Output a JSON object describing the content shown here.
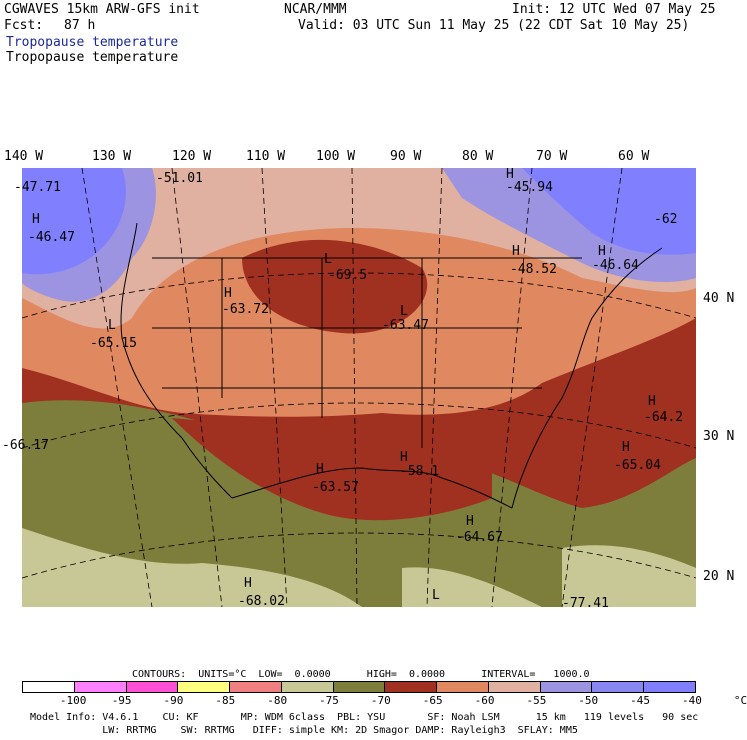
{
  "header": {
    "model_title": "CGWAVES 15km ARW-GFS init",
    "org": "NCAR/MMM",
    "init": "Init: 12 UTC Wed 07 May 25",
    "fcst_label": "Fcst:",
    "fcst_value": "87 h",
    "valid": "Valid: 03 UTC Sun 11 May 25 (22 CDT Sat 10 May 25)",
    "field_title_1": "Tropopause temperature",
    "field_title_2": "Tropopause temperature"
  },
  "axes": {
    "longitudes": [
      "140 W",
      "130 W",
      "120 W",
      "110 W",
      "100 W",
      "90 W",
      "80 W",
      "70 W",
      "60 W"
    ],
    "latitudes": [
      "40 N",
      "30 N",
      "20 N"
    ]
  },
  "map_labels": [
    {
      "kind": "H",
      "value": "-46.47"
    },
    {
      "kind": "",
      "value": "-51.01"
    },
    {
      "kind": "",
      "value": "-47.71"
    },
    {
      "kind": "H",
      "value": "-45.94"
    },
    {
      "kind": "",
      "value": "-62"
    },
    {
      "kind": "H",
      "value": "-48.52"
    },
    {
      "kind": "H",
      "value": "-46.64"
    },
    {
      "kind": "L",
      "value": "-69.5"
    },
    {
      "kind": "H",
      "value": "-63.72"
    },
    {
      "kind": "L",
      "value": "-65.15"
    },
    {
      "kind": "L",
      "value": "-63.47"
    },
    {
      "kind": "H",
      "value": "-64.2"
    },
    {
      "kind": "",
      "value": "-66.17"
    },
    {
      "kind": "H",
      "value": "-65.04"
    },
    {
      "kind": "H",
      "value": "-63.57"
    },
    {
      "kind": "H",
      "value": "-58.1"
    },
    {
      "kind": "H",
      "value": "-64.67"
    },
    {
      "kind": "H",
      "value": "-68.02"
    },
    {
      "kind": "L",
      "value": ""
    },
    {
      "kind": "",
      "value": "-77.41"
    }
  ],
  "contours": {
    "line": "CONTOURS:  UNITS=°C  LOW=  0.0000      HIGH=  0.0000      INTERVAL=   1000.0"
  },
  "colorbar": {
    "colors": [
      "#ffffff",
      "#ff80ff",
      "#ff4fd4",
      "#ffff80",
      "#f08080",
      "#c8c896",
      "#7e7e3c",
      "#a03020",
      "#e08860",
      "#e0b0a0",
      "#9c94e0",
      "#8888f0",
      "#8080ff"
    ],
    "ticks": [
      "-100",
      "-95",
      "-90",
      "-85",
      "-80",
      "-75",
      "-70",
      "-65",
      "-60",
      "-55",
      "-50",
      "-45",
      "-40",
      "°C"
    ]
  },
  "footer": {
    "line1": "Model Info: V4.6.1    CU: KF       MP: WDM 6class  PBL: YSU       SF: Noah LSM      15 km   119 levels   90 sec",
    "line2": "            LW: RRTMG    SW: RRTMG   DIFF: simple KM: 2D Smagor DAMP: Rayleigh3  SFLAY: MM5"
  }
}
